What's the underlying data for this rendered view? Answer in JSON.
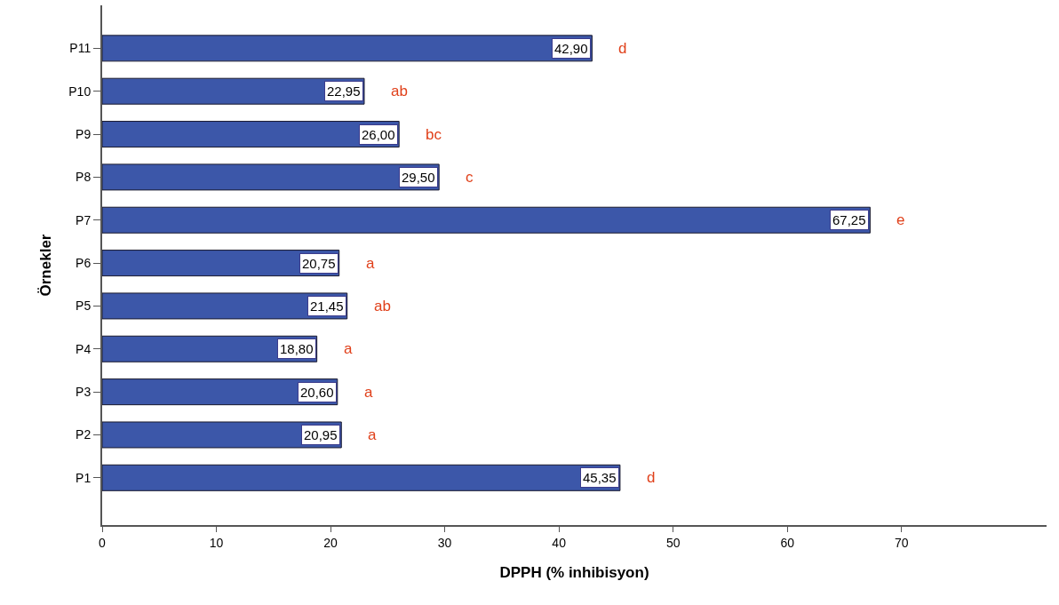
{
  "chart_data": {
    "type": "bar",
    "orientation": "horizontal",
    "xlabel": "DPPH (% inhibisyon)",
    "ylabel": "Örnekler",
    "categories": [
      "P11",
      "P10",
      "P9",
      "P8",
      "P7",
      "P6",
      "P5",
      "P4",
      "P3",
      "P2",
      "P1"
    ],
    "values": [
      42.9,
      22.95,
      26.0,
      29.5,
      67.25,
      20.75,
      21.45,
      18.8,
      20.6,
      20.95,
      45.35
    ],
    "value_labels": [
      "42,90",
      "22,95",
      "26,00",
      "29,50",
      "67,25",
      "20,75",
      "21,45",
      "18,80",
      "20,60",
      "20,95",
      "45,35"
    ],
    "color": "#3c57a9",
    "xlim": [
      0,
      82.7
    ],
    "xticks": [
      0,
      10,
      20,
      30,
      40,
      50,
      60,
      70
    ],
    "annotations": [
      "d",
      "ab",
      "bc",
      "c",
      "e",
      "a",
      "ab",
      "a",
      "a",
      "a",
      "d"
    ]
  }
}
